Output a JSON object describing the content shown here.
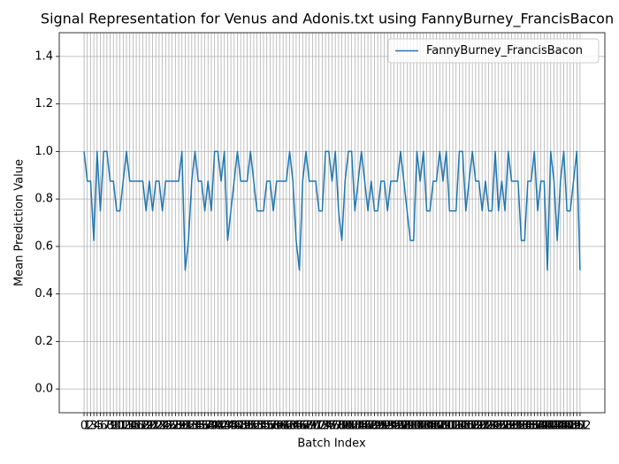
{
  "chart_data": {
    "type": "line",
    "title": "Signal Representation for Venus and Adonis.txt using FannyBurney_FrancisBacon",
    "xlabel": "Batch Index",
    "ylabel": "Mean Prediction Value",
    "x": [
      0,
      1,
      2,
      3,
      4,
      5,
      6,
      7,
      8,
      9,
      10,
      11,
      12,
      13,
      14,
      15,
      16,
      17,
      18,
      19,
      20,
      21,
      22,
      23,
      24,
      25,
      26,
      27,
      28,
      29,
      30,
      31,
      32,
      33,
      34,
      35,
      36,
      37,
      38,
      39,
      40,
      41,
      42,
      43,
      44,
      45,
      46,
      47,
      48,
      49,
      50,
      51,
      52,
      53,
      54,
      55,
      56,
      57,
      58,
      59,
      60,
      61,
      62,
      63,
      64,
      65,
      66,
      67,
      68,
      69,
      70,
      71,
      72,
      73,
      74,
      75,
      76,
      77,
      78,
      79,
      80,
      81,
      82,
      83,
      84,
      85,
      86,
      87,
      88,
      89,
      90,
      91,
      92,
      93,
      94,
      95,
      96,
      97,
      98,
      99,
      100,
      101,
      102,
      103,
      104,
      105,
      106,
      107,
      108,
      109,
      110,
      111,
      112,
      113,
      114,
      115,
      116,
      117,
      118,
      119,
      120,
      121,
      122,
      123,
      124,
      125,
      126,
      127,
      128,
      129,
      130,
      131,
      132,
      133,
      134,
      135,
      136,
      137,
      138,
      139,
      140,
      141,
      142,
      143,
      144,
      145,
      146,
      147,
      148,
      149,
      150,
      151,
      152
    ],
    "series": [
      {
        "name": "FannyBurney_FrancisBacon",
        "color": "#1f77b4",
        "values": [
          1.0,
          0.875,
          0.875,
          0.625,
          1.0,
          0.75,
          1.0,
          1.0,
          0.875,
          0.875,
          0.75,
          0.75,
          0.875,
          1.0,
          0.875,
          0.875,
          0.875,
          0.875,
          0.875,
          0.75,
          0.875,
          0.75,
          0.875,
          0.875,
          0.75,
          0.875,
          0.875,
          0.875,
          0.875,
          0.875,
          1.0,
          0.5,
          0.625,
          0.875,
          1.0,
          0.875,
          0.875,
          0.75,
          0.875,
          0.75,
          1.0,
          1.0,
          0.875,
          1.0,
          0.625,
          0.75,
          0.875,
          1.0,
          0.875,
          0.875,
          0.875,
          1.0,
          0.875,
          0.75,
          0.75,
          0.75,
          0.875,
          0.875,
          0.75,
          0.875,
          0.875,
          0.875,
          0.875,
          1.0,
          0.875,
          0.625,
          0.5,
          0.875,
          1.0,
          0.875,
          0.875,
          0.875,
          0.75,
          0.75,
          1.0,
          1.0,
          0.875,
          1.0,
          0.75,
          0.625,
          0.875,
          1.0,
          1.0,
          0.75,
          0.875,
          1.0,
          0.875,
          0.75,
          0.875,
          0.75,
          0.75,
          0.875,
          0.875,
          0.75,
          0.875,
          0.875,
          0.875,
          1.0,
          0.875,
          0.75,
          0.625,
          0.625,
          1.0,
          0.875,
          1.0,
          0.75,
          0.75,
          0.875,
          0.875,
          1.0,
          0.875,
          1.0,
          0.75,
          0.75,
          0.75,
          1.0,
          1.0,
          0.75,
          0.875,
          1.0,
          0.875,
          0.875,
          0.75,
          0.875,
          0.75,
          0.75,
          1.0,
          0.75,
          0.875,
          0.75,
          1.0,
          0.875,
          0.875,
          0.875,
          0.625,
          0.625,
          0.875,
          0.875,
          1.0,
          0.75,
          0.875,
          0.875,
          0.5,
          1.0,
          0.875,
          0.625,
          0.875,
          1.0,
          0.75,
          0.75,
          0.875,
          1.0,
          0.5
        ]
      }
    ],
    "xlim": [
      -7.6,
      159.6
    ],
    "xticks": [
      0,
      1,
      2,
      3,
      4,
      5,
      6,
      7,
      8,
      9,
      10,
      11,
      12,
      13,
      14,
      15,
      16,
      17,
      18,
      19,
      20,
      21,
      22,
      23,
      24,
      25,
      26,
      27,
      28,
      29,
      30,
      31,
      32,
      33,
      34,
      35,
      36,
      37,
      38,
      39,
      40,
      41,
      42,
      43,
      44,
      45,
      46,
      47,
      48,
      49,
      50,
      51,
      52,
      53,
      54,
      55,
      56,
      57,
      58,
      59,
      60,
      61,
      62,
      63,
      64,
      65,
      66,
      67,
      68,
      69,
      70,
      71,
      72,
      73,
      74,
      75,
      76,
      77,
      78,
      79,
      80,
      81,
      82,
      83,
      84,
      85,
      86,
      87,
      88,
      89,
      90,
      91,
      92,
      93,
      94,
      95,
      96,
      97,
      98,
      99,
      100,
      101,
      102,
      103,
      104,
      105,
      106,
      107,
      108,
      109,
      110,
      111,
      112,
      113,
      114,
      115,
      116,
      117,
      118,
      119,
      120,
      121,
      122,
      123,
      124,
      125,
      126,
      127,
      128,
      129,
      130,
      131,
      132,
      133,
      134,
      135,
      136,
      137,
      138,
      139,
      140,
      141,
      142,
      143,
      144,
      145,
      146,
      147,
      148,
      149,
      150,
      151,
      152
    ],
    "ylim": [
      -0.1,
      1.5
    ],
    "yticks": [
      {
        "value": 0,
        "label": "0.0"
      },
      0.2,
      0.4,
      0.6,
      0.8,
      {
        "value": 1,
        "label": "1.0"
      },
      1.2,
      1.4
    ],
    "grid": true,
    "legend": "upper right"
  }
}
